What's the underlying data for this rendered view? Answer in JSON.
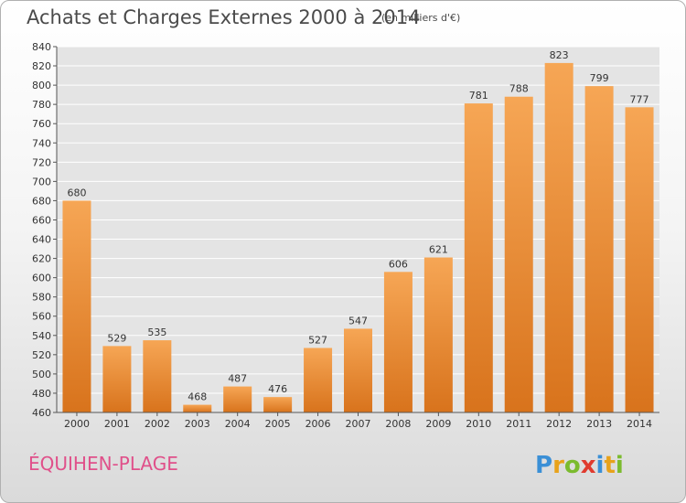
{
  "header": {
    "title": "Achats et Charges Externes 2000 à 2014",
    "unit": "(en milliers d'€)"
  },
  "footer": {
    "town": "ÉQUIHEN-PLAGE",
    "brand": "Proxiti"
  },
  "colors": {
    "bar_light": "#f6a655",
    "bar_dark": "#d8731c",
    "town": "#e0508a",
    "grid": "#ffffff"
  },
  "chart_data": {
    "type": "bar",
    "categories": [
      "2000",
      "2001",
      "2002",
      "2003",
      "2004",
      "2005",
      "2006",
      "2007",
      "2008",
      "2009",
      "2010",
      "2011",
      "2012",
      "2013",
      "2014"
    ],
    "values": [
      680,
      529,
      535,
      468,
      487,
      476,
      527,
      547,
      606,
      621,
      781,
      788,
      823,
      799,
      777
    ],
    "ylim": [
      460,
      840
    ],
    "yticks": [
      460,
      480,
      500,
      520,
      540,
      560,
      580,
      600,
      620,
      640,
      660,
      680,
      700,
      720,
      740,
      760,
      780,
      800,
      820,
      840
    ],
    "grid": true,
    "data_labels": true
  }
}
